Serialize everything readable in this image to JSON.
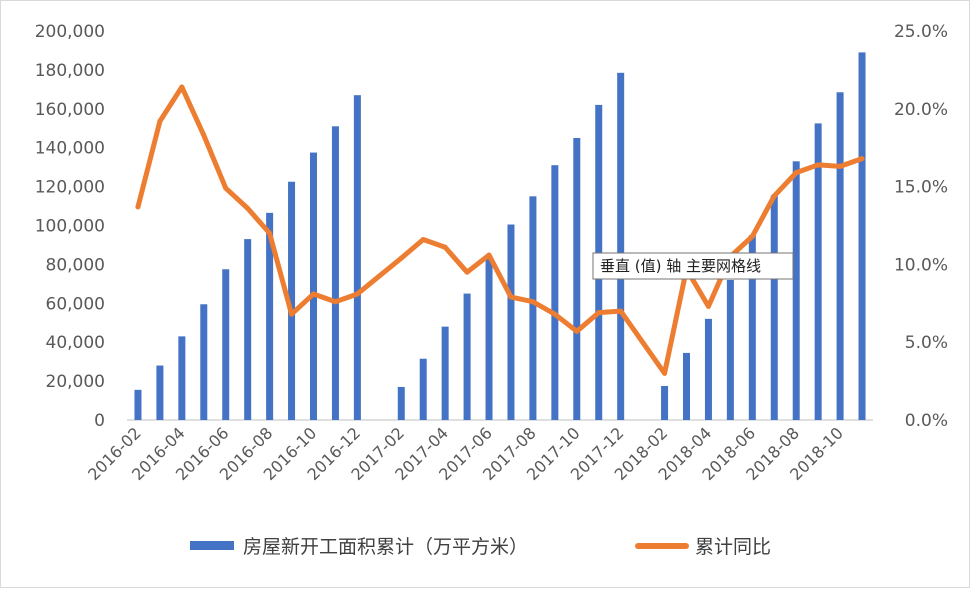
{
  "chart_data": {
    "type": "bar+line",
    "title": "",
    "categories": [
      "2016-02",
      "2016-03",
      "2016-04",
      "2016-05",
      "2016-06",
      "2016-07",
      "2016-08",
      "2016-09",
      "2016-10",
      "2016-11",
      "2016-12",
      "2017-01",
      "2017-02",
      "2017-03",
      "2017-04",
      "2017-05",
      "2017-06",
      "2017-07",
      "2017-08",
      "2017-09",
      "2017-10",
      "2017-11",
      "2017-12",
      "2018-01",
      "2018-02",
      "2018-03",
      "2018-04",
      "2018-05",
      "2018-06",
      "2018-07",
      "2018-08",
      "2018-09",
      "2018-10",
      "2018-11"
    ],
    "x_tick_labels": [
      "2016-02",
      "2016-04",
      "2016-06",
      "2016-08",
      "2016-10",
      "2016-12",
      "2017-02",
      "2017-04",
      "2017-06",
      "2017-08",
      "2017-10",
      "2017-12",
      "2018-02",
      "2018-04",
      "2018-06",
      "2018-08",
      "2018-10"
    ],
    "series": [
      {
        "name": "房屋新开工面积累计（万平方米）",
        "kind": "bar",
        "axis": "left",
        "color": "#4472c4",
        "values": [
          15500,
          28000,
          43000,
          59500,
          77500,
          93000,
          106500,
          122500,
          137500,
          151000,
          167000,
          null,
          17000,
          31500,
          48000,
          65000,
          84000,
          100500,
          115000,
          131000,
          145000,
          162000,
          178500,
          null,
          17500,
          34500,
          52000,
          72000,
          95000,
          115500,
          133000,
          152500,
          168500,
          189000
        ]
      },
      {
        "name": "累计同比",
        "kind": "line",
        "axis": "right",
        "color": "#ed7d31",
        "values": [
          13.7,
          19.2,
          21.4,
          18.3,
          14.9,
          13.6,
          12.0,
          6.8,
          8.1,
          7.6,
          8.1,
          null,
          10.4,
          11.6,
          11.1,
          9.5,
          10.6,
          7.9,
          7.6,
          6.8,
          5.7,
          6.9,
          7.0,
          null,
          3.0,
          9.7,
          7.3,
          10.5,
          11.8,
          14.4,
          15.9,
          16.4,
          16.3,
          16.8
        ]
      }
    ],
    "y_left": {
      "ylim": [
        0,
        200000
      ],
      "ticks": [
        "0",
        "20,000",
        "40,000",
        "60,000",
        "80,000",
        "100,000",
        "120,000",
        "140,000",
        "160,000",
        "180,000",
        "200,000"
      ]
    },
    "y_right": {
      "ylim": [
        0,
        25
      ],
      "ticks": [
        "0.0%",
        "5.0%",
        "10.0%",
        "15.0%",
        "20.0%",
        "25.0%"
      ]
    },
    "grid": false,
    "legend": "bottom",
    "annotation": "垂直 (值) 轴 主要网格线"
  }
}
